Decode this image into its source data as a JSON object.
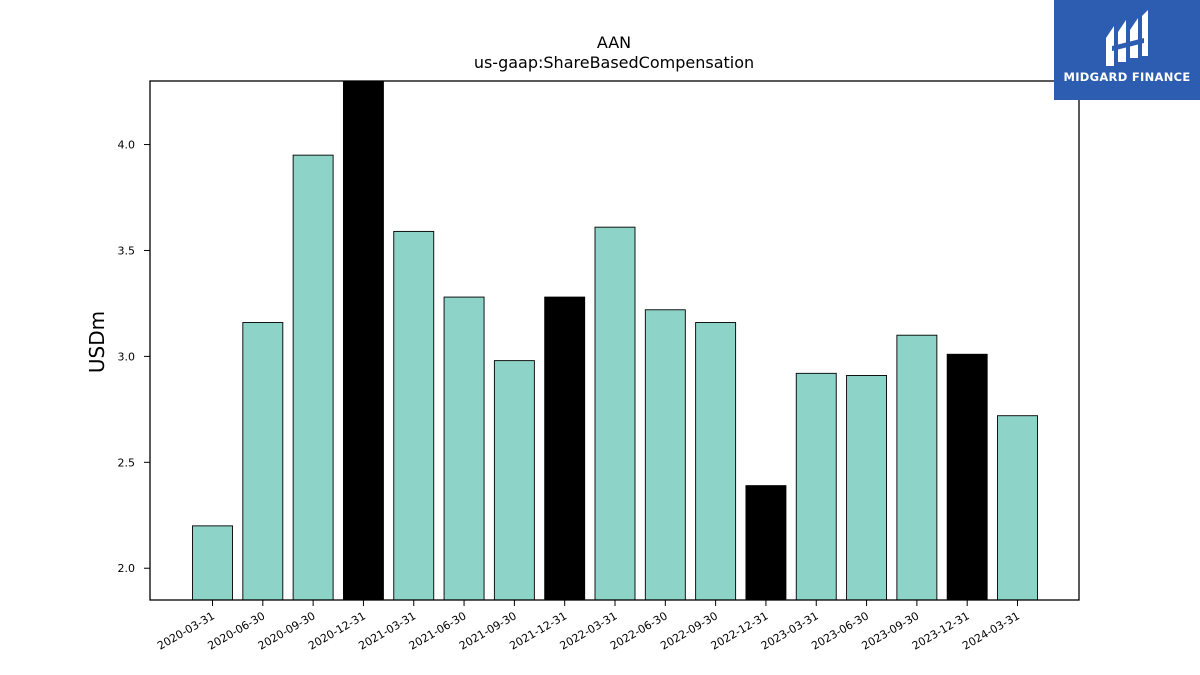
{
  "chart_data": {
    "type": "bar",
    "title": "AAN",
    "subtitle": "us-gaap:ShareBasedCompensation",
    "xlabel": "",
    "ylabel": "USDm",
    "ylim": [
      1.85,
      4.3
    ],
    "yticks": [
      "2.0",
      "2.5",
      "3.0",
      "3.5",
      "4.0"
    ],
    "grid": false,
    "colors": {
      "quarter": "#8dd3c7",
      "year_end": "#000000",
      "edge": "#000000"
    },
    "categories": [
      "2020-03-31",
      "2020-06-30",
      "2020-09-30",
      "2020-12-31",
      "2021-03-31",
      "2021-06-30",
      "2021-09-30",
      "2021-12-31",
      "2022-03-31",
      "2022-06-30",
      "2022-09-30",
      "2022-12-31",
      "2023-03-31",
      "2023-06-30",
      "2023-09-30",
      "2023-12-31",
      "2024-03-31"
    ],
    "values": [
      2.2,
      3.16,
      3.95,
      4.3,
      3.59,
      3.28,
      2.98,
      3.28,
      3.61,
      3.22,
      3.16,
      2.39,
      2.92,
      2.91,
      3.1,
      3.01,
      2.72
    ],
    "highlight": [
      false,
      false,
      false,
      true,
      false,
      false,
      false,
      true,
      false,
      false,
      false,
      true,
      false,
      false,
      false,
      true,
      false
    ]
  },
  "logo": {
    "text": "MIDGARD FINANCE",
    "icon": "midgard-logo-icon"
  }
}
